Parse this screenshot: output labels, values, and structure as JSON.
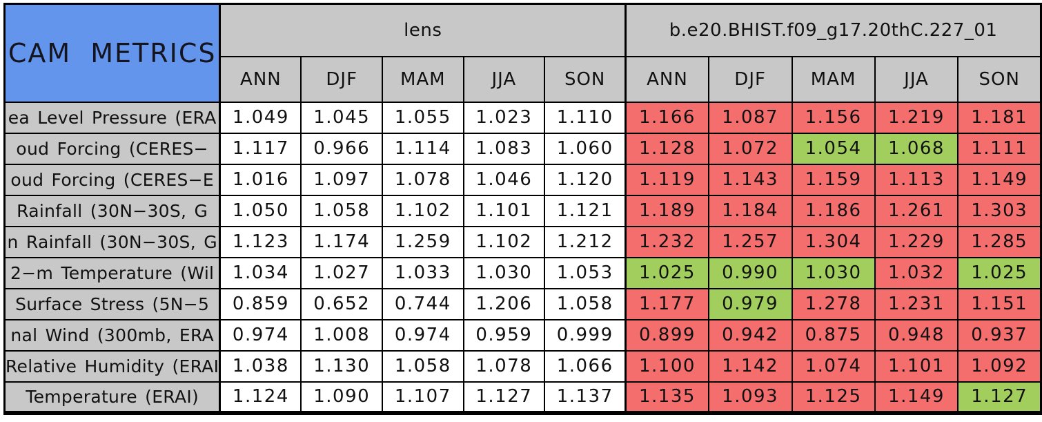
{
  "colors": {
    "title_bg": "#6495ED",
    "header_bg": "#C8C8C8",
    "lens_cell_bg": "#FFFFFF",
    "worse_red": "#F56E6E",
    "better_green": "#A2CE5E",
    "border": "#000000"
  },
  "chart_data": {
    "type": "table",
    "title": "CAM METRICS",
    "group_headers": [
      "lens",
      "b.e20.BHIST.f09_g17.20thC.227_01"
    ],
    "season_columns": [
      "ANN",
      "DJF",
      "MAM",
      "JJA",
      "SON"
    ],
    "status_legend": {
      "worse": "red cell",
      "better": "green cell"
    },
    "rows": [
      {
        "label": "ea Level Pressure (ERA",
        "lens": [
          "1.049",
          "1.045",
          "1.055",
          "1.023",
          "1.110"
        ],
        "model": [
          "1.166",
          "1.087",
          "1.156",
          "1.219",
          "1.181"
        ],
        "model_status": [
          "worse",
          "worse",
          "worse",
          "worse",
          "worse"
        ]
      },
      {
        "label": "oud Forcing (CERES−",
        "lens": [
          "1.117",
          "0.966",
          "1.114",
          "1.083",
          "1.060"
        ],
        "model": [
          "1.128",
          "1.072",
          "1.054",
          "1.068",
          "1.111"
        ],
        "model_status": [
          "worse",
          "worse",
          "better",
          "better",
          "worse"
        ]
      },
      {
        "label": "oud Forcing (CERES−E",
        "lens": [
          "1.016",
          "1.097",
          "1.078",
          "1.046",
          "1.120"
        ],
        "model": [
          "1.119",
          "1.143",
          "1.159",
          "1.113",
          "1.149"
        ],
        "model_status": [
          "worse",
          "worse",
          "worse",
          "worse",
          "worse"
        ]
      },
      {
        "label": "Rainfall (30N−30S, G",
        "lens": [
          "1.050",
          "1.058",
          "1.102",
          "1.101",
          "1.121"
        ],
        "model": [
          "1.189",
          "1.184",
          "1.186",
          "1.261",
          "1.303"
        ],
        "model_status": [
          "worse",
          "worse",
          "worse",
          "worse",
          "worse"
        ]
      },
      {
        "label": "n Rainfall (30N−30S, G",
        "lens": [
          "1.123",
          "1.174",
          "1.259",
          "1.102",
          "1.212"
        ],
        "model": [
          "1.232",
          "1.257",
          "1.304",
          "1.229",
          "1.285"
        ],
        "model_status": [
          "worse",
          "worse",
          "worse",
          "worse",
          "worse"
        ]
      },
      {
        "label": "2−m Temperature (Wil",
        "lens": [
          "1.034",
          "1.027",
          "1.033",
          "1.030",
          "1.053"
        ],
        "model": [
          "1.025",
          "0.990",
          "1.030",
          "1.032",
          "1.025"
        ],
        "model_status": [
          "better",
          "better",
          "better",
          "worse",
          "better"
        ]
      },
      {
        "label": "Surface Stress (5N−5",
        "lens": [
          "0.859",
          "0.652",
          "0.744",
          "1.206",
          "1.058"
        ],
        "model": [
          "1.177",
          "0.979",
          "1.278",
          "1.231",
          "1.151"
        ],
        "model_status": [
          "worse",
          "better",
          "worse",
          "worse",
          "worse"
        ]
      },
      {
        "label": "nal Wind (300mb, ERA",
        "lens": [
          "0.974",
          "1.008",
          "0.974",
          "0.959",
          "0.999"
        ],
        "model": [
          "0.899",
          "0.942",
          "0.875",
          "0.948",
          "0.937"
        ],
        "model_status": [
          "worse",
          "worse",
          "worse",
          "worse",
          "worse"
        ]
      },
      {
        "label": "Relative Humidity (ERAI",
        "lens": [
          "1.038",
          "1.130",
          "1.058",
          "1.078",
          "1.066"
        ],
        "model": [
          "1.100",
          "1.142",
          "1.074",
          "1.101",
          "1.092"
        ],
        "model_status": [
          "worse",
          "worse",
          "worse",
          "worse",
          "worse"
        ]
      },
      {
        "label": "Temperature (ERAI)",
        "lens": [
          "1.124",
          "1.090",
          "1.107",
          "1.127",
          "1.137"
        ],
        "model": [
          "1.135",
          "1.093",
          "1.125",
          "1.149",
          "1.127"
        ],
        "model_status": [
          "worse",
          "worse",
          "worse",
          "worse",
          "better"
        ]
      }
    ]
  }
}
